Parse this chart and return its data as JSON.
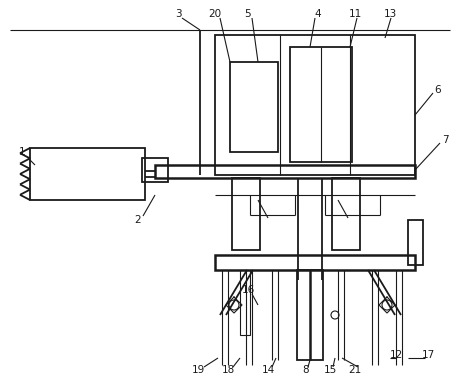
{
  "bg_color": "#ffffff",
  "line_color": "#1a1a1a",
  "lw": 1.3,
  "tlw": 0.8
}
